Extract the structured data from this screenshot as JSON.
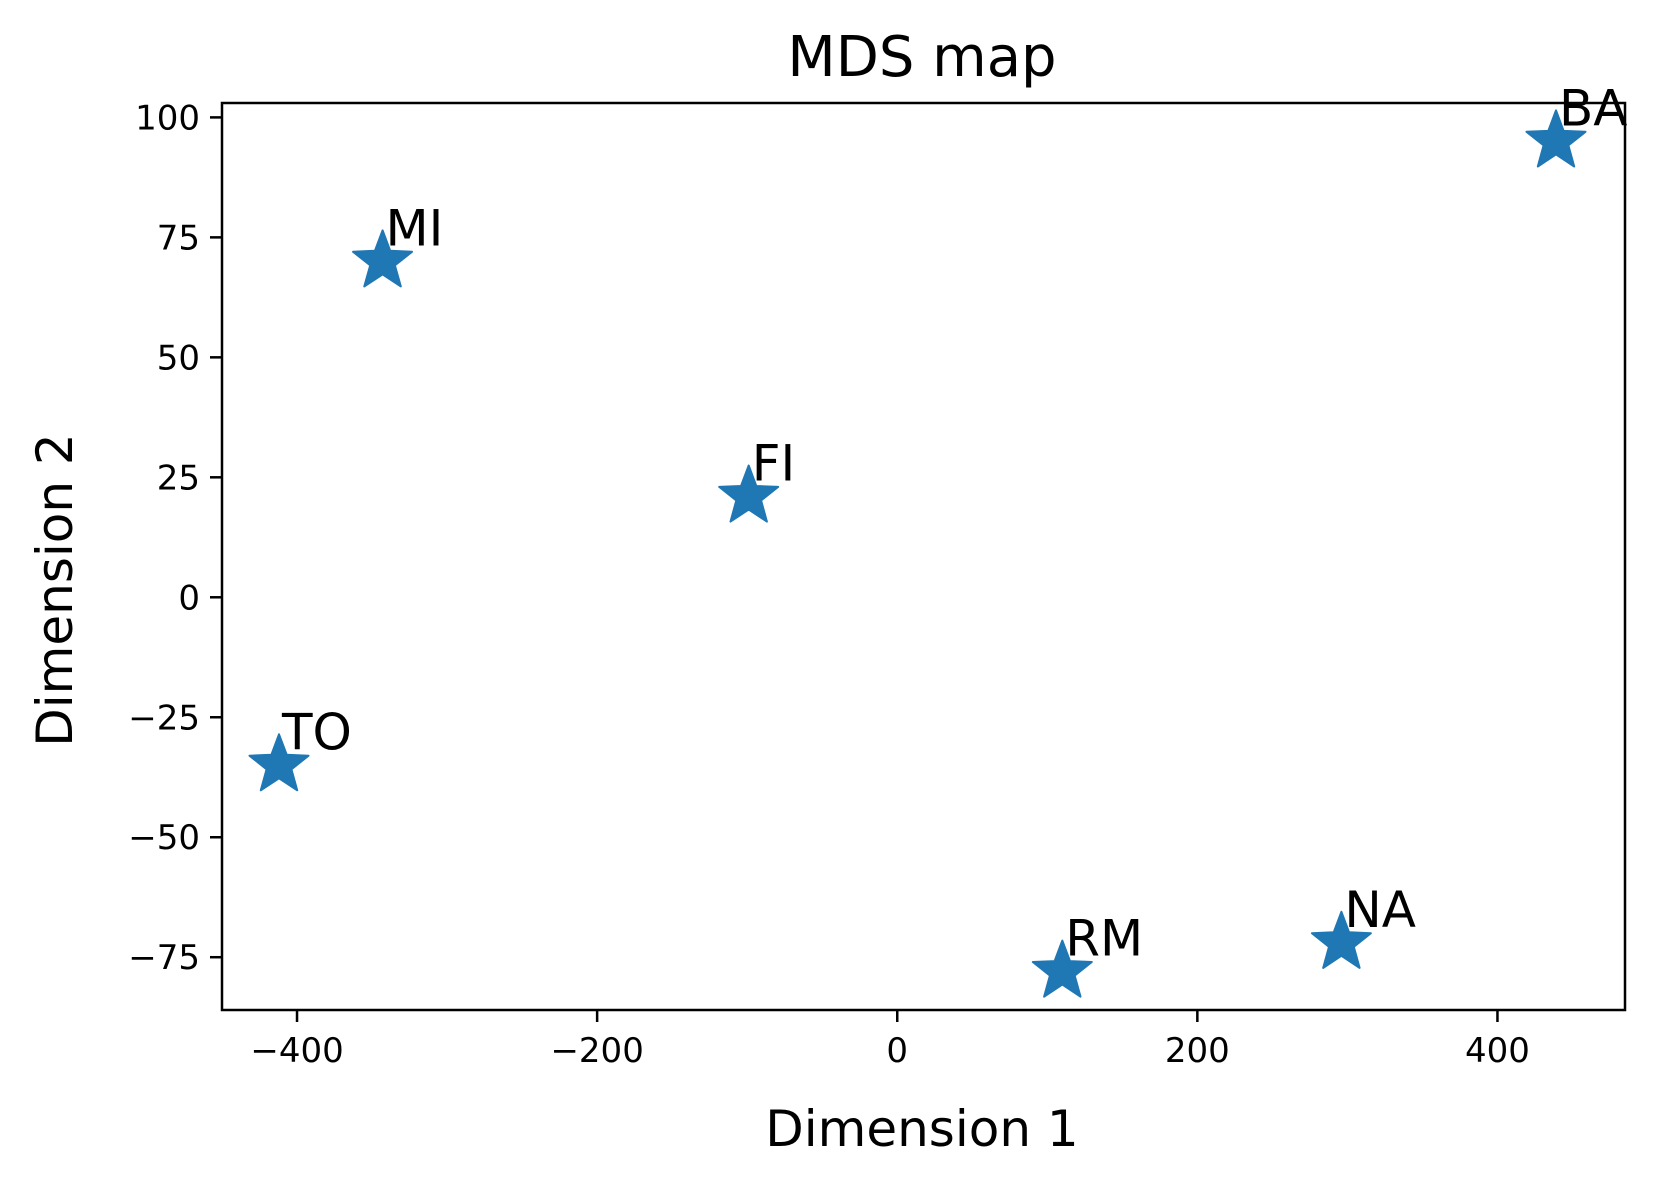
{
  "chart_data": {
    "type": "scatter",
    "title": "MDS map",
    "xlabel": "Dimension 1",
    "ylabel": "Dimension 2",
    "xlim": [
      -450,
      485
    ],
    "ylim": [
      -86,
      103
    ],
    "xticks": [
      -400,
      -200,
      0,
      200,
      400
    ],
    "xtick_labels": [
      "−400",
      "−200",
      "0",
      "200",
      "400"
    ],
    "yticks": [
      -75,
      -50,
      -25,
      0,
      25,
      50,
      75,
      100
    ],
    "ytick_labels": [
      "−75",
      "−50",
      "−25",
      "0",
      "25",
      "50",
      "75",
      "100"
    ],
    "grid": false,
    "marker": "star",
    "marker_color": "#1f77b4",
    "points": [
      {
        "label": "MI",
        "x": -343,
        "y": 70
      },
      {
        "label": "FI",
        "x": -99,
        "y": 21
      },
      {
        "label": "TO",
        "x": -412,
        "y": -35
      },
      {
        "label": "RM",
        "x": 110,
        "y": -78
      },
      {
        "label": "NA",
        "x": 296,
        "y": -72
      },
      {
        "label": "BA",
        "x": 439,
        "y": 95
      }
    ]
  }
}
